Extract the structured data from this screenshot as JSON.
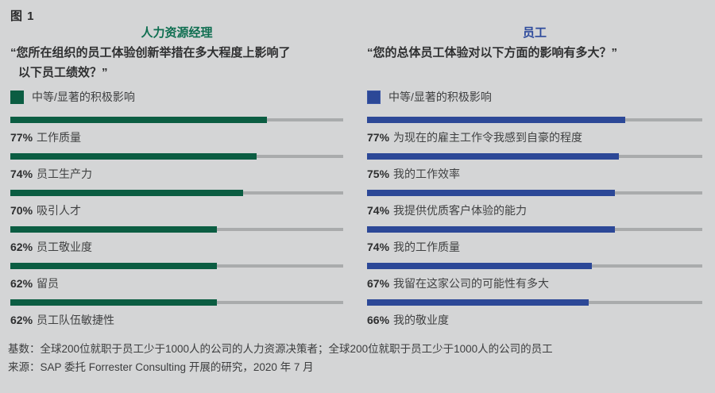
{
  "figure_label": "图 1",
  "colors": {
    "background": "#d4d5d6",
    "hr_green_bar": "#0b5d42",
    "hr_green_title": "#0e6e50",
    "employee_blue_bar": "#2c4897",
    "employee_blue_title": "#2d4a9c",
    "track_gray": "#a9abac",
    "text_dark": "#2f3031"
  },
  "left_panel": {
    "title": "人力资源经理",
    "question_line1": "“您所在组织的员工体验创新举措在多大程度上影响了",
    "question_line2": "以下员工绩效？”",
    "legend": "中等/显著的积极影响",
    "bars": [
      {
        "pct": "77%",
        "label": "工作质量",
        "value": 77
      },
      {
        "pct": "74%",
        "label": "员工生产力",
        "value": 74
      },
      {
        "pct": "70%",
        "label": "吸引人才",
        "value": 70
      },
      {
        "pct": "62%",
        "label": "员工敬业度",
        "value": 62
      },
      {
        "pct": "62%",
        "label": "留员",
        "value": 62
      },
      {
        "pct": "62%",
        "label": "员工队伍敏捷性",
        "value": 62
      }
    ]
  },
  "right_panel": {
    "title": "员工",
    "question_line1": "“您的总体员工体验对以下方面的影响有多大？”",
    "question_line2": "",
    "legend": "中等/显著的积极影响",
    "bars": [
      {
        "pct": "77%",
        "label": "为现在的雇主工作令我感到自豪的程度",
        "value": 77
      },
      {
        "pct": "75%",
        "label": "我的工作效率",
        "value": 75
      },
      {
        "pct": "74%",
        "label": "我提供优质客户体验的能力",
        "value": 74
      },
      {
        "pct": "74%",
        "label": "我的工作质量",
        "value": 74
      },
      {
        "pct": "67%",
        "label": "我留在这家公司的可能性有多大",
        "value": 67
      },
      {
        "pct": "66%",
        "label": "我的敬业度",
        "value": 66
      }
    ]
  },
  "footnote": {
    "base": "基数：全球200位就职于员工少于1000人的公司的人力资源决策者；全球200位就职于员工少于1000人的公司的员工",
    "source": "来源：SAP 委托 Forrester Consulting 开展的研究，2020 年 7 月"
  },
  "chart_data": [
    {
      "type": "bar",
      "title": "人力资源经理",
      "subtitle": "“您所在组织的员工体验创新举措在多大程度上影响了以下员工绩效？”",
      "legend": [
        "中等/显著的积极影响"
      ],
      "legend_position": "top-left",
      "orientation": "horizontal",
      "categories": [
        "工作质量",
        "员工生产力",
        "吸引人才",
        "员工敬业度",
        "留员",
        "员工队伍敏捷性"
      ],
      "values": [
        77,
        74,
        70,
        62,
        62,
        62
      ],
      "unit": "%",
      "xlim": [
        0,
        100
      ],
      "grid": false,
      "bar_color": "#0b5d42"
    },
    {
      "type": "bar",
      "title": "员工",
      "subtitle": "“您的总体员工体验对以下方面的影响有多大？”",
      "legend": [
        "中等/显著的积极影响"
      ],
      "legend_position": "top-left",
      "orientation": "horizontal",
      "categories": [
        "为现在的雇主工作令我感到自豪的程度",
        "我的工作效率",
        "我提供优质客户体验的能力",
        "我的工作质量",
        "我留在这家公司的可能性有多大",
        "我的敬业度"
      ],
      "values": [
        77,
        75,
        74,
        74,
        67,
        66
      ],
      "unit": "%",
      "xlim": [
        0,
        100
      ],
      "grid": false,
      "bar_color": "#2c4897"
    }
  ]
}
